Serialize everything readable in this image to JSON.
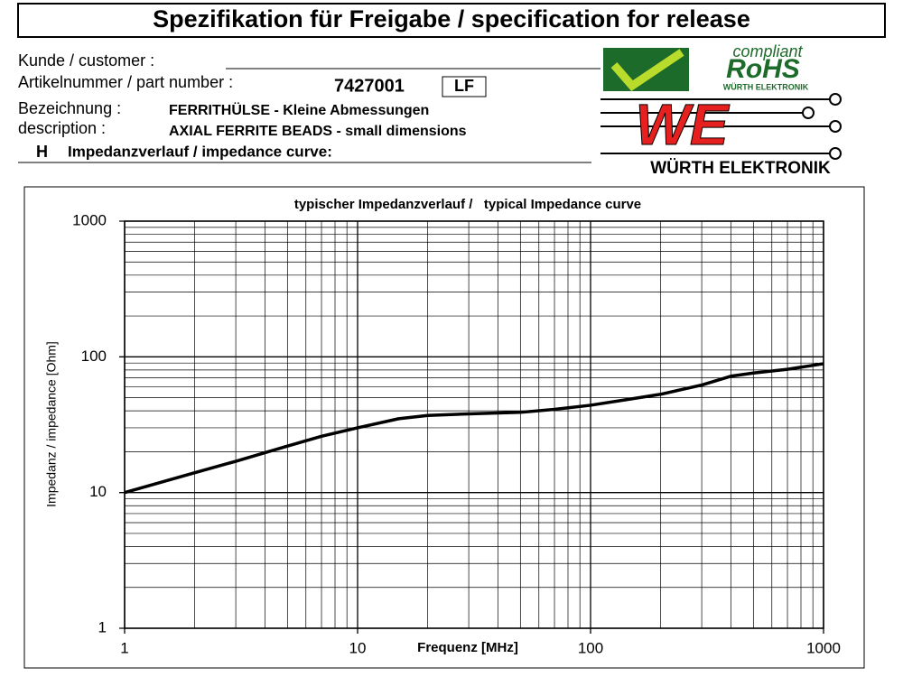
{
  "header": {
    "title": "Spezifikation für Freigabe / specification for release"
  },
  "fields": {
    "customer_label": "Kunde / customer :",
    "part_number_label": "Artikelnummer / part number :",
    "part_number": "7427001",
    "part_suffix": "LF",
    "designation_label": "Bezeichnung :",
    "designation": "FERRITHÜLSE - Kleine Abmessungen",
    "description_label": "description :",
    "description": "AXIAL FERRITE BEADS - small dimensions",
    "section_letter": "H",
    "section_title": "Impedanzverlauf / impedance curve:"
  },
  "logo": {
    "compliant": "compliant",
    "rohs": "RoHS",
    "rohs_sub": "WÜRTH ELEKTRONIK",
    "we": "WE",
    "brand": "WÜRTH ELEKTRONIK"
  },
  "chart_data": {
    "type": "line",
    "title": "typischer Impedanzverlauf /   typical Impedance curve",
    "x_label": "Frequenz [MHz]",
    "y_label": "Impedanz / impedance [Ohm]",
    "x": [
      1,
      2,
      3,
      5,
      7,
      10,
      15,
      20,
      30,
      50,
      70,
      100,
      150,
      200,
      300,
      400,
      500,
      700,
      1000
    ],
    "values": [
      10,
      14,
      17,
      22,
      26,
      30,
      35,
      37,
      38,
      39,
      41,
      44,
      49,
      53,
      62,
      72,
      76,
      81,
      89
    ],
    "color": "#000000",
    "xlim": [
      1,
      1000
    ],
    "ylim": [
      1,
      1000
    ],
    "xticks": [
      1,
      10,
      100,
      1000
    ],
    "yticks": [
      1,
      10,
      100,
      1000
    ],
    "xlog": true,
    "ylog": true,
    "grid": true
  }
}
